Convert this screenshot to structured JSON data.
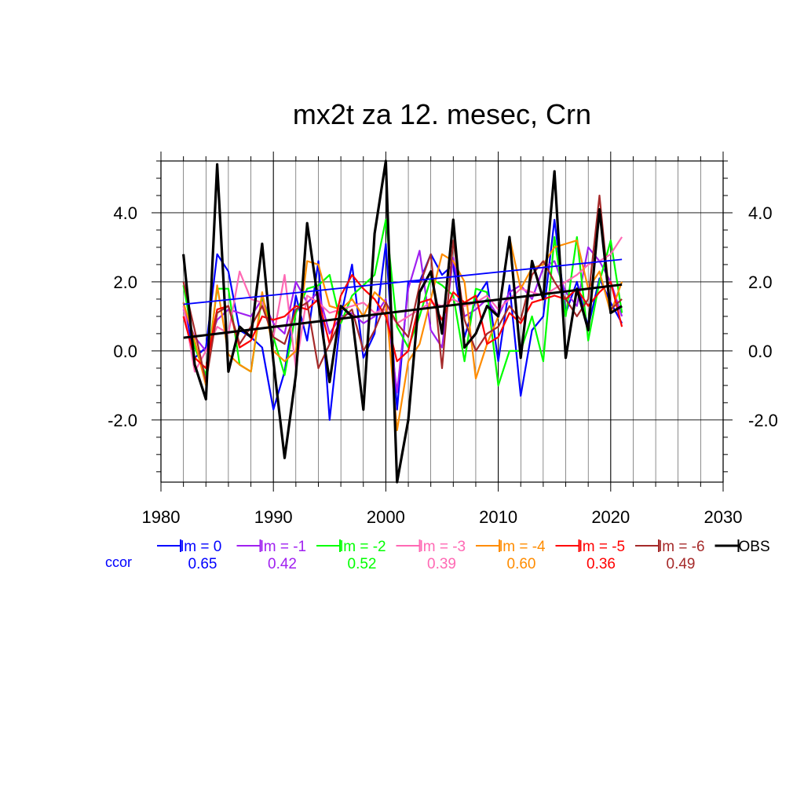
{
  "chart_data": {
    "type": "line",
    "title": "mx2t za 12. mesec, Crn",
    "xlabel": "",
    "ylabel": "",
    "xlim": [
      1980,
      2030
    ],
    "ylim": [
      -3.8,
      5.5
    ],
    "x_ticks": [
      1980,
      1990,
      2000,
      2010,
      2020,
      2030
    ],
    "x_tick_labels": [
      "1980",
      "1990",
      "2000",
      "2010",
      "2020",
      "2030"
    ],
    "y_ticks": [
      -2.0,
      0.0,
      2.0,
      4.0
    ],
    "y_tick_labels": [
      "-2.0",
      "0.0",
      "2.0",
      "4.0"
    ],
    "grid": true,
    "legend_position": "bottom",
    "ccor_label": "ccor",
    "x": [
      1982,
      1983,
      1984,
      1985,
      1986,
      1987,
      1988,
      1989,
      1990,
      1991,
      1992,
      1993,
      1994,
      1995,
      1996,
      1997,
      1998,
      1999,
      2000,
      2001,
      2002,
      2003,
      2004,
      2005,
      2006,
      2007,
      2008,
      2009,
      2010,
      2011,
      2012,
      2013,
      2014,
      2015,
      2016,
      2017,
      2018,
      2019,
      2020,
      2021
    ],
    "series": [
      {
        "name": "lm = 0",
        "color": "#0000ff",
        "ccor": "0.65",
        "values": [
          1.4,
          -0.2,
          0.1,
          2.8,
          2.3,
          0.6,
          0.4,
          0.1,
          -1.7,
          -0.6,
          1.6,
          0.3,
          2.6,
          -2.0,
          1.0,
          2.5,
          -0.2,
          0.5,
          3.1,
          -1.7,
          2.0,
          2.0,
          2.8,
          2.2,
          2.5,
          0.4,
          1.5,
          2.0,
          -0.3,
          1.9,
          -1.3,
          0.6,
          1.0,
          3.8,
          1.1,
          2.0,
          0.7,
          2.1,
          1.4,
          0.8
        ],
        "trend": [
          1.35,
          2.65
        ]
      },
      {
        "name": "lm = -1",
        "color": "#a020f0",
        "ccor": "0.42",
        "values": [
          1.2,
          0.4,
          0.0,
          0.9,
          1.2,
          1.1,
          1.0,
          1.5,
          0.8,
          0.5,
          2.0,
          1.4,
          1.7,
          0.5,
          1.0,
          1.1,
          0.8,
          1.0,
          1.5,
          -1.2,
          1.8,
          2.9,
          0.6,
          0.1,
          2.7,
          1.0,
          1.2,
          1.5,
          1.0,
          1.7,
          1.9,
          1.5,
          2.4,
          2.6,
          1.7,
          1.3,
          3.0,
          2.6,
          2.0,
          1.0
        ],
        "trend": null
      },
      {
        "name": "lm = -2",
        "color": "#00ff00",
        "ccor": "0.52",
        "values": [
          1.9,
          0.1,
          -0.7,
          1.8,
          1.8,
          -0.4,
          -0.6,
          1.6,
          0.4,
          -0.7,
          1.1,
          1.8,
          1.9,
          2.2,
          0.8,
          1.6,
          1.9,
          2.2,
          3.8,
          0.7,
          0.1,
          1.0,
          2.1,
          1.9,
          1.6,
          -0.3,
          1.8,
          1.7,
          -1.0,
          0.0,
          0.0,
          1.0,
          -0.3,
          3.3,
          1.0,
          3.3,
          0.3,
          2.0,
          3.2,
          1.1
        ],
        "trend": null
      },
      {
        "name": "lm = -3",
        "color": "#ff69b4",
        "ccor": "0.39",
        "values": [
          1.3,
          -0.6,
          0.0,
          0.7,
          0.5,
          2.3,
          1.5,
          1.4,
          0.4,
          2.2,
          -0.5,
          1.6,
          1.4,
          1.1,
          1.2,
          1.3,
          1.4,
          1.1,
          1.2,
          0.8,
          1.0,
          1.2,
          1.4,
          1.3,
          1.5,
          1.3,
          1.4,
          1.6,
          1.2,
          1.5,
          1.8,
          1.7,
          1.6,
          1.8,
          2.0,
          2.2,
          2.5,
          2.6,
          2.8,
          3.3
        ],
        "trend": null
      },
      {
        "name": "lm = -4",
        "color": "#ff8c00",
        "ccor": "0.60",
        "values": [
          1.4,
          0.3,
          -1.0,
          1.9,
          -0.1,
          -0.4,
          -0.6,
          1.7,
          0.0,
          -0.3,
          0.0,
          2.6,
          2.5,
          1.3,
          1.2,
          1.5,
          1.0,
          1.7,
          1.4,
          -2.3,
          -0.3,
          0.2,
          1.5,
          2.8,
          2.6,
          2.0,
          -0.8,
          0.2,
          1.0,
          3.3,
          1.8,
          2.4,
          2.5,
          3.0,
          3.1,
          3.2,
          1.8,
          2.3,
          1.1,
          2.0
        ],
        "trend": null
      },
      {
        "name": "lm = -5",
        "color": "#ff0000",
        "ccor": "0.36",
        "values": [
          1.0,
          -0.2,
          -0.5,
          1.2,
          1.3,
          0.1,
          0.3,
          1.0,
          0.9,
          1.0,
          1.3,
          1.2,
          1.5,
          0.2,
          1.6,
          2.2,
          1.8,
          1.5,
          1.0,
          -0.3,
          0.0,
          1.4,
          1.5,
          0.9,
          1.7,
          1.4,
          1.6,
          0.2,
          0.4,
          1.1,
          0.8,
          1.4,
          1.5,
          1.6,
          1.5,
          1.8,
          1.3,
          1.7,
          2.0,
          0.7
        ],
        "trend": null
      },
      {
        "name": "lm = -6",
        "color": "#a52a2a",
        "ccor": "0.49",
        "values": [
          2.0,
          0.6,
          -0.9,
          1.1,
          1.3,
          0.2,
          0.7,
          1.3,
          0.4,
          0.2,
          1.2,
          1.4,
          -0.5,
          0.2,
          0.9,
          1.2,
          0.0,
          0.6,
          1.4,
          0.8,
          0.4,
          1.9,
          2.8,
          -0.5,
          3.2,
          0.9,
          0.0,
          0.5,
          0.7,
          1.3,
          0.9,
          2.2,
          2.6,
          2.0,
          1.5,
          1.0,
          1.5,
          4.5,
          1.2,
          1.5
        ],
        "trend": null
      },
      {
        "name": "OBS",
        "color": "#000000",
        "ccor": "",
        "values": [
          2.8,
          -0.4,
          -1.4,
          5.4,
          -0.6,
          0.7,
          0.4,
          3.1,
          -0.3,
          -3.1,
          -0.7,
          3.7,
          1.4,
          -0.9,
          1.3,
          1.0,
          -1.7,
          3.4,
          5.5,
          -3.8,
          -2.0,
          1.7,
          2.3,
          0.5,
          3.8,
          0.1,
          0.5,
          1.3,
          1.0,
          3.3,
          -0.2,
          2.6,
          1.5,
          5.2,
          -0.2,
          1.8,
          0.6,
          4.1,
          1.1,
          1.3
        ],
        "trend": [
          0.38,
          1.92
        ]
      }
    ]
  }
}
